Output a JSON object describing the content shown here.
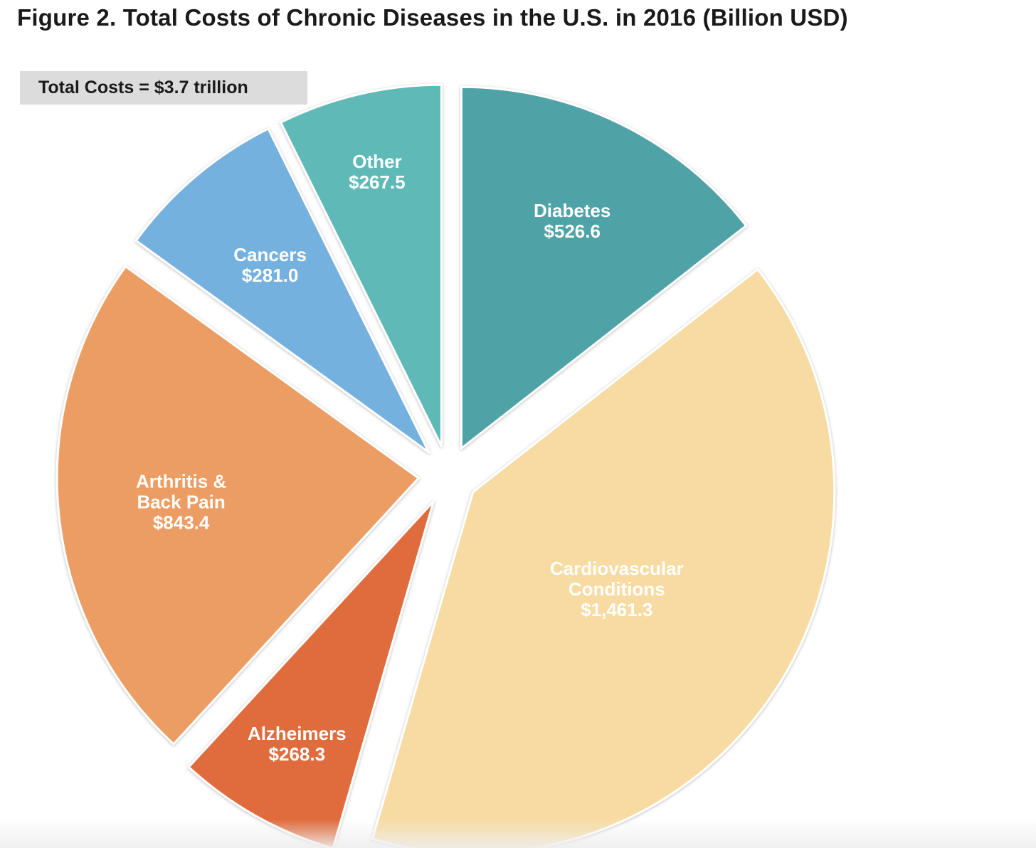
{
  "figure": {
    "title": "Figure 2. Total Costs of Chronic Diseases in the U.S. in 2016 (Billion USD)",
    "total_label": "Total Costs = $3.7 trillion"
  },
  "chart_data": {
    "type": "pie",
    "title": "Figure 2. Total Costs of Chronic Diseases in the U.S. in 2016 (Billion USD)",
    "annotation": "Total Costs = $3.7 trillion",
    "unit": "Billion USD",
    "slices": [
      {
        "key": "diabetes",
        "label_lines": [
          "Diabetes",
          "$526.6"
        ],
        "name": "Diabetes",
        "value": 526.6,
        "color": "#4fa2a6"
      },
      {
        "key": "cardiovascular",
        "label_lines": [
          "Cardiovascular",
          "Conditions",
          "$1,461.3"
        ],
        "name": "Cardiovascular Conditions",
        "value": 1461.3,
        "color": "#f7dba2"
      },
      {
        "key": "alzheimers",
        "label_lines": [
          "Alzheimers",
          "$268.3"
        ],
        "name": "Alzheimers",
        "value": 268.3,
        "color": "#e06c3d"
      },
      {
        "key": "arthritis",
        "label_lines": [
          "Arthritis &",
          "Back Pain",
          "$843.4"
        ],
        "name": "Arthritis & Back Pain",
        "value": 843.4,
        "color": "#eb9d64"
      },
      {
        "key": "cancers",
        "label_lines": [
          "Cancers",
          "$281.0"
        ],
        "name": "Cancers",
        "value": 281.0,
        "color": "#75b1de"
      },
      {
        "key": "other",
        "label_lines": [
          "Other",
          "$267.5"
        ],
        "name": "Other",
        "value": 267.5,
        "color": "#5fbab7"
      }
    ]
  }
}
